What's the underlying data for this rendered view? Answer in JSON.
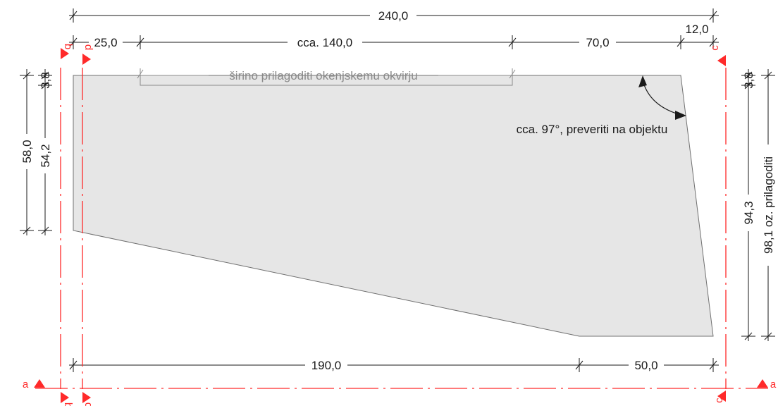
{
  "dimensions": {
    "overall_width": "240,0",
    "top_left_offset": "25,0",
    "top_window": "cca. 140,0",
    "top_middle": "70,0",
    "top_right": "12,0",
    "bottom_left": "190,0",
    "bottom_right": "50,0",
    "left_outer_height": "58,0",
    "left_inner_height": "54,2",
    "left_top_small": "3,8",
    "right_top_small": "3,8",
    "right_height": "94,3",
    "right_outer_height": "98,1 oz. prilagoditi"
  },
  "annotations": {
    "window_note": "širino prilagoditi okenjskemu okvirju",
    "angle_note": "cca. 97°, preveriti na objektu"
  },
  "section_markers": {
    "a_left": "a",
    "a_right": "a",
    "b_top": "b",
    "b_bottom": "b",
    "c_top": "c",
    "c_bottom": "c",
    "d_top": "d",
    "d_bottom": "d"
  },
  "colors": {
    "shape_fill": "#e6e6e6",
    "section_lines": "#ff2a2a",
    "dimension_lines": "#1a1a1a"
  }
}
